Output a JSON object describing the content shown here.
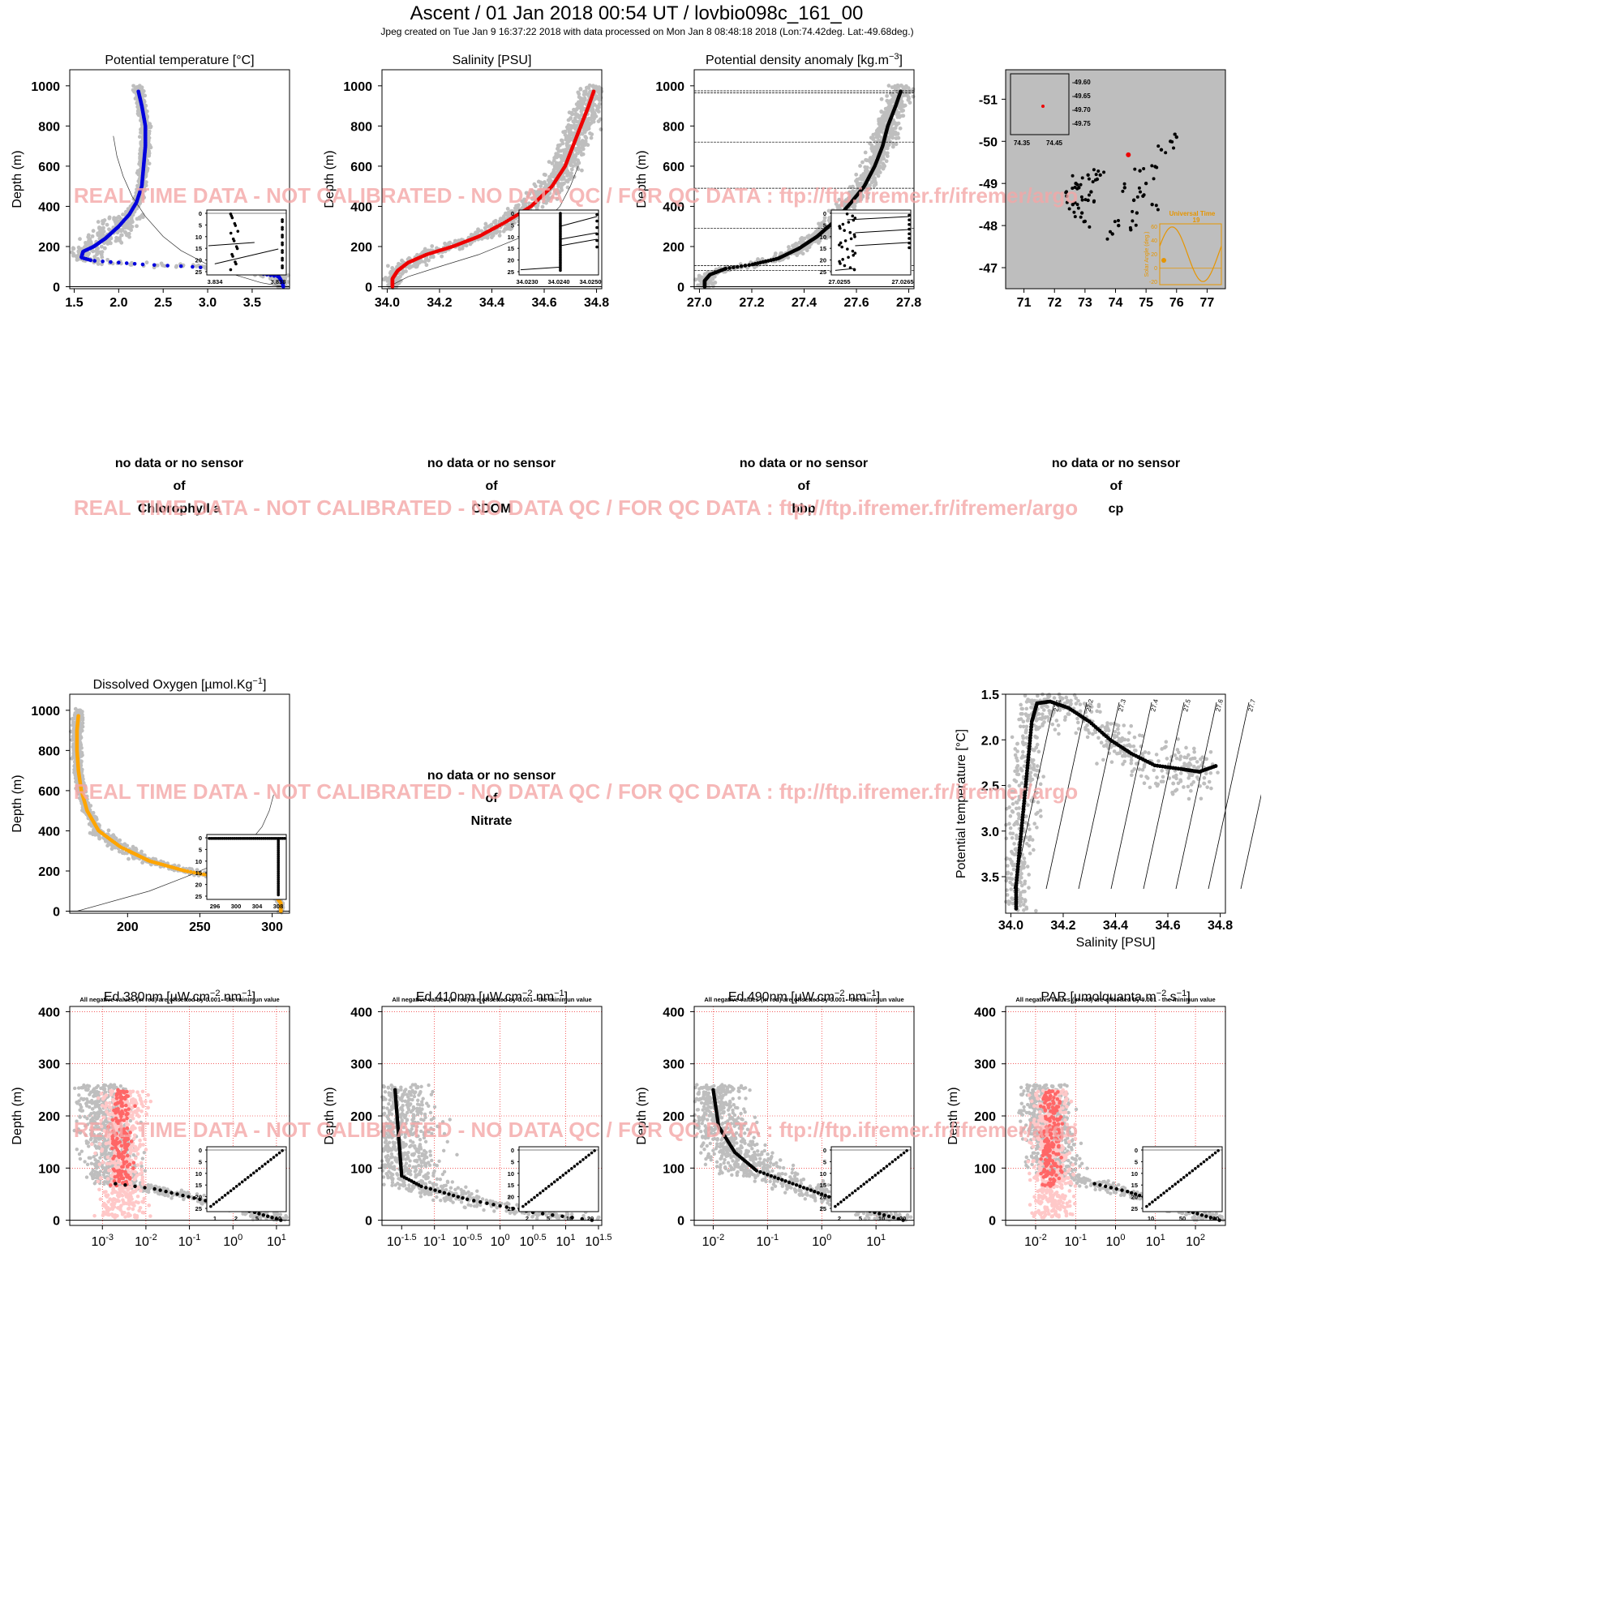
{
  "header": {
    "title": "Ascent / 01 Jan 2018 00:54 UT /  lovbio098c_161_00",
    "subtitle": "Jpeg created on Tue Jan  9 16:37:22 2018 with data processed on Mon Jan  8 08:48:18 2018 (Lon:74.42deg. Lat:-49.68deg.)"
  },
  "watermark": "REAL TIME DATA - NOT CALIBRATED - NO DATA QC   /  FOR QC DATA : ftp://ftp.ifremer.fr/ifremer/argo",
  "colors": {
    "temperature": "#0000dd",
    "salinity": "#ee0000",
    "density": "#000000",
    "oxygen": "#ffa500",
    "climatology": "#bebebe",
    "negative": "#ff6666",
    "negative_clim": "#ffc8c8",
    "watermark": "#f4a6a6"
  },
  "no_data": [
    {
      "line1": "no data or no sensor",
      "line2": "of",
      "param": "Chlorophyll a"
    },
    {
      "line1": "no data or no sensor",
      "line2": "of",
      "param": "CDOM"
    },
    {
      "line1": "no data or no sensor",
      "line2": "of",
      "param": "bbp"
    },
    {
      "line1": "no data or no sensor",
      "line2": "of",
      "param": "cp"
    },
    {
      "line1": "no data or no sensor",
      "line2": "of",
      "param": "Nitrate"
    }
  ],
  "chart_data": [
    {
      "id": "temp",
      "type": "scatter",
      "title": "Potential temperature [°C]",
      "ylabel": "Depth (m)",
      "xlim": [
        1.45,
        3.92
      ],
      "ylim": [
        1080,
        -10
      ],
      "xticks": [
        "1.5",
        "2.0",
        "2.5",
        "3.0",
        "3.5"
      ],
      "yticks": [
        "0",
        "200",
        "400",
        "600",
        "800",
        "1000"
      ],
      "profile": [
        [
          3.85,
          0
        ],
        [
          3.84,
          20
        ],
        [
          3.8,
          50
        ],
        [
          3.4,
          80
        ],
        [
          2.8,
          100
        ],
        [
          2.3,
          110
        ],
        [
          2.0,
          120
        ],
        [
          1.7,
          130
        ],
        [
          1.58,
          145
        ],
        [
          1.6,
          175
        ],
        [
          1.72,
          200
        ],
        [
          1.85,
          240
        ],
        [
          2.0,
          300
        ],
        [
          2.12,
          360
        ],
        [
          2.2,
          420
        ],
        [
          2.26,
          500
        ],
        [
          2.28,
          600
        ],
        [
          2.3,
          700
        ],
        [
          2.3,
          800
        ],
        [
          2.26,
          900
        ],
        [
          2.22,
          975
        ]
      ],
      "inset": {
        "xlim": [
          3.8335,
          3.8395
        ],
        "ylim": [
          26,
          -1
        ],
        "xticks": [
          "3.834",
          "3.838"
        ],
        "yticks": [
          "0",
          "5",
          "10",
          "15",
          "20",
          "25"
        ]
      }
    },
    {
      "id": "sal",
      "type": "scatter",
      "title": "Salinity [PSU]",
      "ylabel": "Depth (m)",
      "xlim": [
        33.98,
        34.82
      ],
      "ylim": [
        1080,
        -10
      ],
      "xticks": [
        "34.0",
        "34.2",
        "34.4",
        "34.6",
        "34.8"
      ],
      "yticks": [
        "0",
        "200",
        "400",
        "600",
        "800",
        "1000"
      ],
      "profile": [
        [
          34.02,
          0
        ],
        [
          34.02,
          40
        ],
        [
          34.04,
          80
        ],
        [
          34.08,
          120
        ],
        [
          34.15,
          160
        ],
        [
          34.25,
          200
        ],
        [
          34.35,
          250
        ],
        [
          34.45,
          320
        ],
        [
          34.55,
          400
        ],
        [
          34.63,
          500
        ],
        [
          34.68,
          600
        ],
        [
          34.71,
          700
        ],
        [
          34.74,
          800
        ],
        [
          34.77,
          900
        ],
        [
          34.79,
          975
        ]
      ],
      "inset": {
        "xlim": [
          34.0228,
          34.0251
        ],
        "ylim": [
          26,
          -1
        ],
        "xticks": [
          "34.0230",
          "34.0240",
          "34.0250"
        ],
        "yticks": [
          "0",
          "5",
          "10",
          "15",
          "20",
          "25"
        ]
      }
    },
    {
      "id": "dens",
      "type": "scatter",
      "title": "Potential density anomaly [kg.m",
      "title_sup": "−3",
      "title_end": "]",
      "ylabel": "Depth (m)",
      "xlim": [
        26.98,
        27.82
      ],
      "ylim": [
        1080,
        -10
      ],
      "xticks": [
        "27.0",
        "27.2",
        "27.4",
        "27.6",
        "27.8"
      ],
      "yticks": [
        "0",
        "200",
        "400",
        "600",
        "800",
        "1000"
      ],
      "hlines": [
        80,
        105,
        290,
        490,
        720,
        965,
        975
      ],
      "profile": [
        [
          27.02,
          0
        ],
        [
          27.02,
          30
        ],
        [
          27.04,
          60
        ],
        [
          27.1,
          90
        ],
        [
          27.2,
          110
        ],
        [
          27.3,
          140
        ],
        [
          27.38,
          190
        ],
        [
          27.45,
          250
        ],
        [
          27.52,
          330
        ],
        [
          27.58,
          420
        ],
        [
          27.63,
          500
        ],
        [
          27.67,
          600
        ],
        [
          27.7,
          700
        ],
        [
          27.72,
          800
        ],
        [
          27.75,
          900
        ],
        [
          27.77,
          975
        ]
      ],
      "inset": {
        "xlim": [
          27.025,
          27.027
        ],
        "ylim": [
          26,
          -1
        ],
        "xticks": [
          "27.0255",
          "27.0265"
        ],
        "yticks": [
          "0",
          "5",
          "10",
          "15",
          "20",
          "25"
        ]
      }
    },
    {
      "id": "map",
      "type": "scatter",
      "xlim": [
        70.4,
        77.6
      ],
      "ylim": [
        -51.7,
        -46.5
      ],
      "xticks": [
        "71",
        "72",
        "73",
        "74",
        "75",
        "76",
        "77"
      ],
      "yticks": [
        "-47",
        "-48",
        "-49",
        "-50",
        "-51"
      ],
      "track": [
        [
          72.6,
          -48.5
        ],
        [
          72.9,
          -48.3
        ],
        [
          73.1,
          -48.6
        ],
        [
          72.8,
          -48.9
        ],
        [
          73.2,
          -48.8
        ],
        [
          73.4,
          -49.1
        ],
        [
          73.1,
          -49.2
        ],
        [
          72.7,
          -49.0
        ],
        [
          72.4,
          -48.7
        ],
        [
          73.0,
          -48.1
        ],
        [
          73.5,
          -49.2
        ],
        [
          73.9,
          -47.8
        ],
        [
          74.1,
          -48.0
        ],
        [
          74.5,
          -47.9
        ],
        [
          74.7,
          -48.3
        ],
        [
          74.9,
          -48.7
        ],
        [
          75.2,
          -48.5
        ],
        [
          75.0,
          -49.0
        ],
        [
          75.3,
          -49.4
        ],
        [
          75.5,
          -49.8
        ],
        [
          75.8,
          -50.0
        ],
        [
          76.0,
          -50.1
        ],
        [
          74.6,
          -48.6
        ],
        [
          74.3,
          -48.9
        ],
        [
          74.8,
          -49.3
        ]
      ],
      "current": [
        74.42,
        -49.68
      ],
      "mini_map": {
        "xticks": [
          "74.35",
          "74.45"
        ],
        "yticks": [
          "-49.60",
          "-49.65",
          "-49.70",
          "-49.75"
        ]
      },
      "sun_inset": {
        "title": "Universal Time",
        "value": "19",
        "ylabel": "Solar Angle (deg.)",
        "yticks": [
          "60",
          "40",
          "20",
          "0",
          "-20"
        ]
      }
    },
    {
      "id": "oxy",
      "type": "scatter",
      "title": "Dissolved Oxygen [µmol.Kg",
      "title_sup": "−1",
      "title_end": "]",
      "ylabel": "Depth (m)",
      "xlim": [
        160,
        312
      ],
      "ylim": [
        1080,
        -10
      ],
      "xticks": [
        "200",
        "250",
        "300"
      ],
      "yticks": [
        "0",
        "200",
        "400",
        "600",
        "800",
        "1000"
      ],
      "profile": [
        [
          306,
          0
        ],
        [
          306,
          40
        ],
        [
          302,
          80
        ],
        [
          290,
          120
        ],
        [
          270,
          160
        ],
        [
          240,
          200
        ],
        [
          215,
          250
        ],
        [
          195,
          320
        ],
        [
          180,
          400
        ],
        [
          172,
          500
        ],
        [
          168,
          600
        ],
        [
          166,
          700
        ],
        [
          165,
          800
        ],
        [
          165,
          900
        ],
        [
          166,
          975
        ]
      ],
      "inset": {
        "xlim": [
          295.5,
          308.5
        ],
        "ylim": [
          26,
          -1
        ],
        "xticks": [
          "296",
          "300",
          "304",
          "308"
        ],
        "yticks": [
          "0",
          "5",
          "10",
          "15",
          "20",
          "25"
        ]
      }
    },
    {
      "id": "ts",
      "type": "scatter",
      "xlabel": "Salinity [PSU]",
      "ylabel": "Potential temperature [°C]",
      "xlim": [
        33.98,
        34.82
      ],
      "ylim": [
        1.5,
        3.9
      ],
      "xticks": [
        "34.0",
        "34.2",
        "34.4",
        "34.6",
        "34.8"
      ],
      "yticks": [
        "1.5",
        "2.0",
        "2.5",
        "3.0",
        "3.5"
      ],
      "isopycnals": [
        "27.1",
        "27.2",
        "27.3",
        "27.4",
        "27.5",
        "27.6",
        "27.7",
        "27.8"
      ],
      "profile": [
        [
          34.02,
          3.85
        ],
        [
          34.02,
          3.6
        ],
        [
          34.03,
          3.3
        ],
        [
          34.04,
          3.0
        ],
        [
          34.05,
          2.7
        ],
        [
          34.06,
          2.4
        ],
        [
          34.07,
          2.1
        ],
        [
          34.08,
          1.8
        ],
        [
          34.1,
          1.6
        ],
        [
          34.15,
          1.58
        ],
        [
          34.22,
          1.65
        ],
        [
          34.3,
          1.8
        ],
        [
          34.38,
          2.0
        ],
        [
          34.46,
          2.15
        ],
        [
          34.55,
          2.28
        ],
        [
          34.65,
          2.32
        ],
        [
          34.72,
          2.35
        ],
        [
          34.79,
          2.28
        ]
      ]
    },
    {
      "id": "ed380",
      "type": "scatter",
      "title": "Ed 380nm [µW.cm",
      "title_sup": "−2",
      "title_mid": ".nm",
      "title_sup2": "−1",
      "title_end": "]",
      "note": "All negative values (in red) are offsetted by 0.001 - the minimun value",
      "ylabel": "Depth (m)",
      "log": true,
      "xlim": [
        -3.75,
        1.3
      ],
      "ylim": [
        410,
        -10
      ],
      "xticks": [
        {
          "b": "10",
          "e": "-3"
        },
        {
          "b": "10",
          "e": "-2"
        },
        {
          "b": "10",
          "e": "-1"
        },
        {
          "b": "10",
          "e": "0"
        },
        {
          "b": "10",
          "e": "1"
        }
      ],
      "yticks": [
        "0",
        "100",
        "200",
        "300",
        "400"
      ],
      "inset": {
        "xticks": [
          "1",
          "2",
          "5",
          "10"
        ],
        "yticks": [
          "0",
          "5",
          "10",
          "15",
          "20",
          "25"
        ]
      }
    },
    {
      "id": "ed410",
      "type": "scatter",
      "title": "Ed 410nm [µW.cm",
      "title_sup": "−2",
      "title_mid": ".nm",
      "title_sup2": "−1",
      "title_end": "]",
      "note": "All negative values (in red) are offsetted by 0.001 - the minimun value",
      "ylabel": "Depth (m)",
      "log": true,
      "xlim": [
        -1.8,
        1.55
      ],
      "ylim": [
        410,
        -10
      ],
      "xticks": [
        {
          "b": "10",
          "e": "-1.5"
        },
        {
          "b": "10",
          "e": "-1"
        },
        {
          "b": "10",
          "e": "-0.5"
        },
        {
          "b": "10",
          "e": "0"
        },
        {
          "b": "10",
          "e": "0.5"
        },
        {
          "b": "10",
          "e": "1"
        },
        {
          "b": "10",
          "e": "1.5"
        }
      ],
      "yticks": [
        "0",
        "100",
        "200",
        "300",
        "400"
      ],
      "inset": {
        "xticks": [
          "2",
          "5",
          "10",
          "20"
        ],
        "yticks": [
          "0",
          "5",
          "10",
          "15",
          "20",
          "25"
        ]
      }
    },
    {
      "id": "ed490",
      "type": "scatter",
      "title": "Ed 490nm [µW.cm",
      "title_sup": "−2",
      "title_mid": ".nm",
      "title_sup2": "−1",
      "title_end": "]",
      "note": "All negative values (in red) are offsetted by 0.001 - the minimun value",
      "ylabel": "Depth (m)",
      "log": true,
      "xlim": [
        -2.35,
        1.7
      ],
      "ylim": [
        410,
        -10
      ],
      "xticks": [
        {
          "b": "10",
          "e": "-2"
        },
        {
          "b": "10",
          "e": "-1"
        },
        {
          "b": "10",
          "e": "0"
        },
        {
          "b": "10",
          "e": "1"
        }
      ],
      "yticks": [
        "0",
        "100",
        "200",
        "300",
        "400"
      ],
      "inset": {
        "xticks": [
          "2",
          "5",
          "10",
          "20"
        ],
        "yticks": [
          "0",
          "5",
          "10",
          "15",
          "20",
          "25"
        ]
      }
    },
    {
      "id": "par",
      "type": "scatter",
      "title": "PAR [µmolquanta.m",
      "title_sup": "−2",
      "title_mid": ".s",
      "title_sup2": "−1",
      "title_end": "]",
      "note": "All negative values (in red) are offsetted by 0.001 - the minimun value",
      "ylabel": "Depth (m)",
      "log": true,
      "xlim": [
        -2.75,
        2.75
      ],
      "ylim": [
        410,
        -10
      ],
      "xticks": [
        {
          "b": "10",
          "e": "-2"
        },
        {
          "b": "10",
          "e": "-1"
        },
        {
          "b": "10",
          "e": "0"
        },
        {
          "b": "10",
          "e": "1"
        },
        {
          "b": "10",
          "e": "2"
        }
      ],
      "yticks": [
        "0",
        "100",
        "200",
        "300",
        "400"
      ],
      "inset": {
        "xticks": [
          "10",
          "50",
          "200"
        ],
        "yticks": [
          "0",
          "5",
          "10",
          "15",
          "20",
          "25"
        ]
      }
    }
  ]
}
